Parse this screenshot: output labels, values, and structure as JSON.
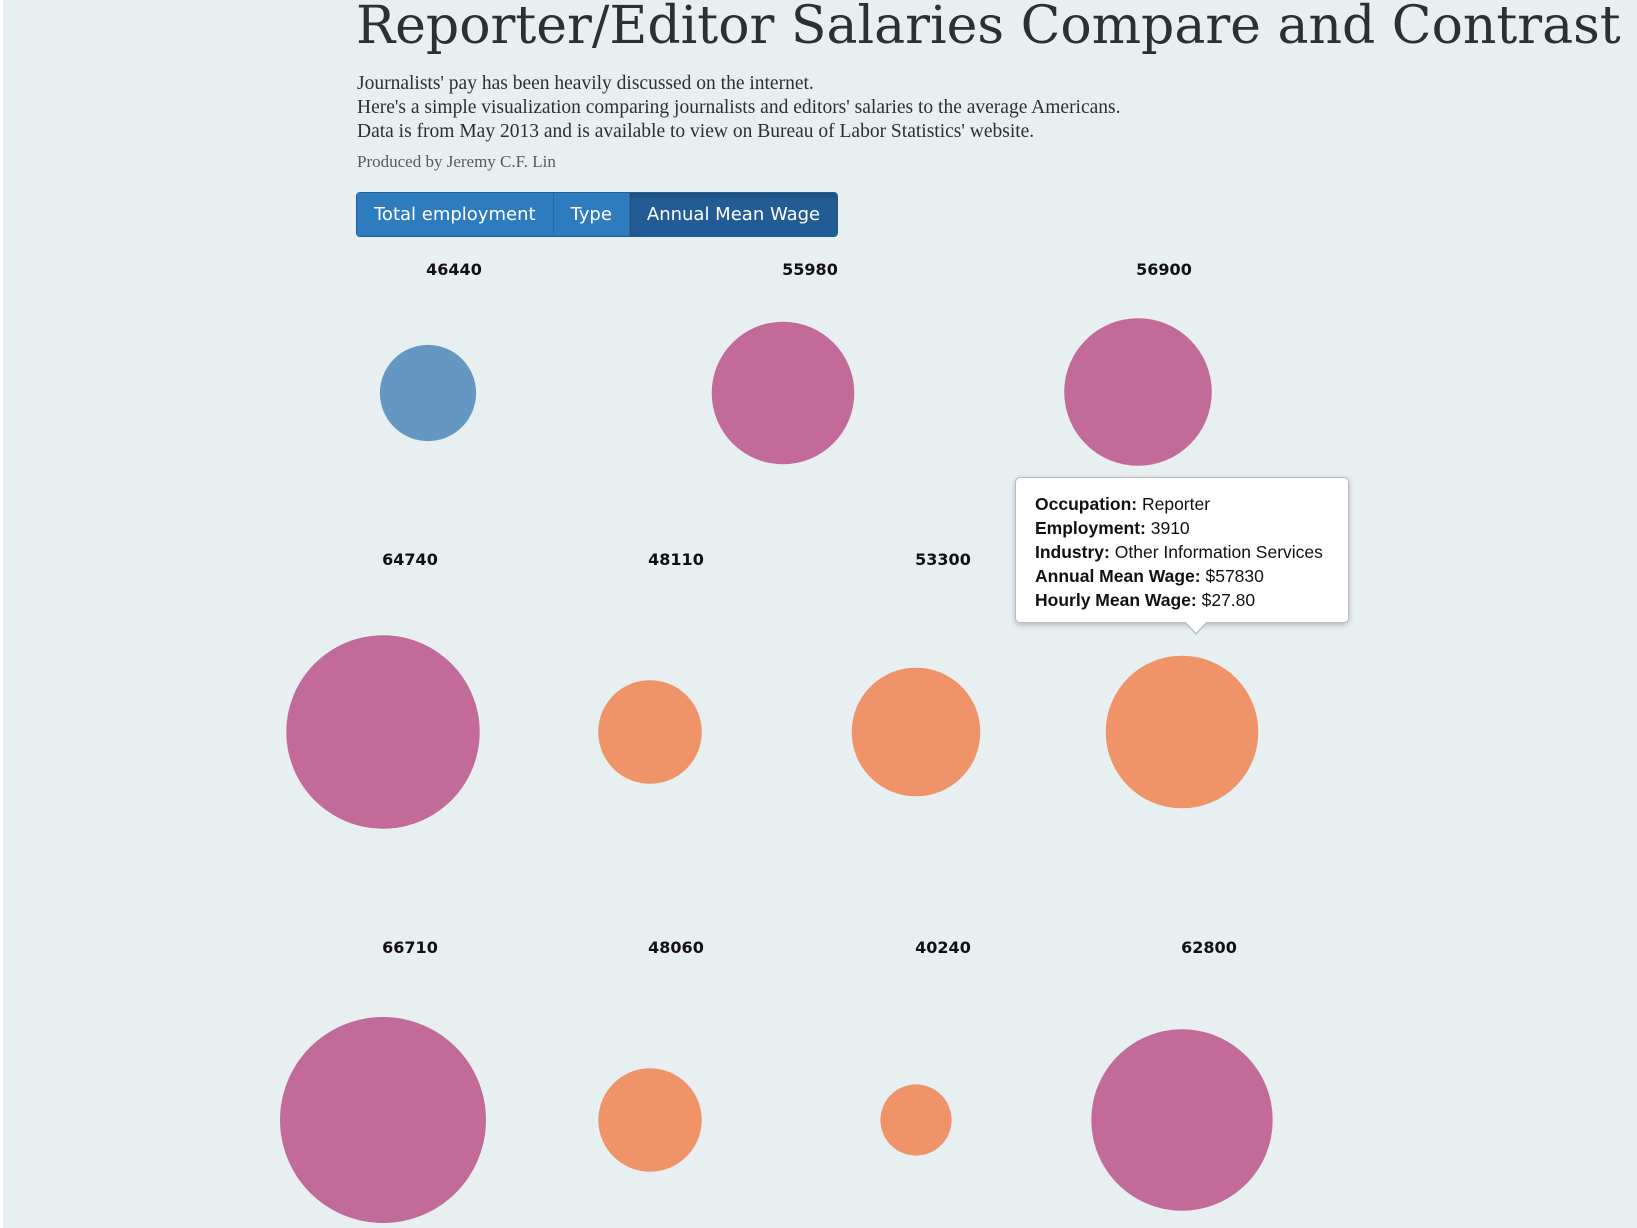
{
  "title": "Reporter/Editor Salaries Compare and Contrast",
  "intro": [
    "Journalists' pay has been heavily discussed on the internet.",
    "Here's a simple visualization comparing journalists and editors' salaries to the average Americans.",
    "Data is from May 2013 and is available to view on Bureau of Labor Statistics' website."
  ],
  "byline": "Produced by Jeremy C.F. Lin",
  "buttons": {
    "total_employment": "Total employment",
    "type": "Type",
    "annual_mean_wage": "Annual Mean Wage"
  },
  "active_button": "annual_mean_wage",
  "colors": {
    "blue": "#6497c2",
    "magenta": "#c26b9b",
    "orange": "#ef9368",
    "button": "#2e7bbd",
    "button_active": "#235c94",
    "background": "#e8eff1"
  },
  "tooltip": {
    "occupation_label": "Occupation:",
    "occupation": "Reporter",
    "employment_label": "Employment:",
    "employment": "3910",
    "industry_label": "Industry:",
    "industry": "Other Information Services",
    "annual_label": "Annual Mean Wage:",
    "annual": "$57830",
    "hourly_label": "Hourly Mean Wage:",
    "hourly": "$27.80"
  },
  "chart_data": {
    "type": "scatter",
    "encoding": "bubble area by annual mean wage",
    "points": [
      {
        "label": "46440",
        "value": 46440,
        "color": "blue"
      },
      {
        "label": "55980",
        "value": 55980,
        "color": "magenta"
      },
      {
        "label": "56900",
        "value": 56900,
        "color": "magenta"
      },
      {
        "label": "64740",
        "value": 64740,
        "color": "magenta"
      },
      {
        "label": "48110",
        "value": 48110,
        "color": "orange"
      },
      {
        "label": "53300",
        "value": 53300,
        "color": "orange"
      },
      {
        "label": "",
        "value": 57830,
        "color": "orange"
      },
      {
        "label": "66710",
        "value": 66710,
        "color": "magenta"
      },
      {
        "label": "48060",
        "value": 48060,
        "color": "orange"
      },
      {
        "label": "40240",
        "value": 40240,
        "color": "orange"
      },
      {
        "label": "62800",
        "value": 62800,
        "color": "magenta"
      }
    ]
  }
}
